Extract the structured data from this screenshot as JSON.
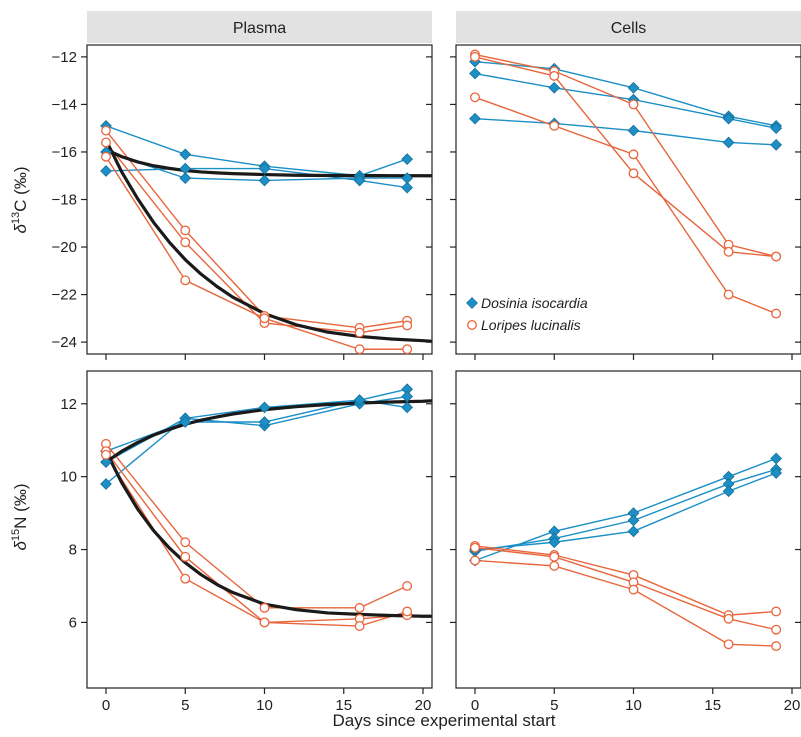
{
  "colors": {
    "dosinia": "#1b8fc6",
    "loripes": "#e8663d",
    "fit": "#1a1a1a",
    "strip": "#e2e2e2",
    "axis": "#222222"
  },
  "strips": [
    "Plasma",
    "Cells"
  ],
  "xlabel": "Days since experimental start",
  "ylabels": {
    "carbon": {
      "pre": "δ",
      "sup": "13",
      "post": "C (‰)"
    },
    "nitrogen": {
      "pre": "δ",
      "sup": "15",
      "post": "N (‰)"
    }
  },
  "legend": [
    {
      "name": "Dosinia isocardia",
      "marker": "diamond",
      "color": "#1b8fc6"
    },
    {
      "name": "Loripes lucinalis",
      "marker": "circle",
      "color": "#e8663d"
    }
  ],
  "chart_data": [
    {
      "type": "line",
      "panel": "Plasma",
      "variable": "d13C",
      "xlim": [
        0,
        20
      ],
      "ylim": [
        -24.5,
        -11.5
      ],
      "xticks": [
        0,
        5,
        10,
        15,
        20
      ],
      "yticks": [
        -24,
        -22,
        -20,
        -18,
        -16,
        -14,
        -12
      ],
      "series": [
        {
          "species": "Dosinia isocardia",
          "x": [
            0,
            5,
            10,
            16,
            19
          ],
          "y": [
            -14.9,
            -16.1,
            -16.6,
            -17.0,
            -16.3
          ]
        },
        {
          "species": "Dosinia isocardia",
          "x": [
            0,
            5,
            10,
            16,
            19
          ],
          "y": [
            -16.0,
            -17.1,
            -17.2,
            -17.1,
            -17.1
          ]
        },
        {
          "species": "Dosinia isocardia",
          "x": [
            0,
            5,
            10,
            16,
            19
          ],
          "y": [
            -16.8,
            -16.7,
            -16.7,
            -17.2,
            -17.5
          ]
        },
        {
          "species": "Loripes lucinalis",
          "x": [
            0,
            5,
            10,
            16,
            19
          ],
          "y": [
            -15.1,
            -19.3,
            -22.9,
            -23.4,
            -23.1
          ]
        },
        {
          "species": "Loripes lucinalis",
          "x": [
            0,
            5,
            10,
            16,
            19
          ],
          "y": [
            -15.6,
            -19.8,
            -23.2,
            -23.6,
            -23.3
          ]
        },
        {
          "species": "Loripes lucinalis",
          "x": [
            0,
            5,
            10,
            16,
            19
          ],
          "y": [
            -16.2,
            -21.4,
            -23.0,
            -24.3,
            -24.3
          ]
        }
      ],
      "fits": [
        {
          "x": [
            0,
            1,
            2,
            3,
            4,
            5,
            6,
            7,
            8,
            10,
            12,
            14,
            16,
            18,
            20,
            20.5
          ],
          "y": [
            -15.9,
            -16.2,
            -16.42,
            -16.58,
            -16.69,
            -16.78,
            -16.84,
            -16.88,
            -16.91,
            -16.95,
            -16.98,
            -16.99,
            -16.995,
            -16.998,
            -17.0,
            -17.0
          ]
        },
        {
          "x": [
            0,
            1,
            2,
            3,
            4,
            5,
            6,
            7,
            8,
            10,
            12,
            14,
            16,
            18,
            20,
            20.5
          ],
          "y": [
            -15.5,
            -16.85,
            -17.97,
            -18.96,
            -19.8,
            -20.53,
            -21.14,
            -21.66,
            -22.11,
            -22.8,
            -23.27,
            -23.58,
            -23.76,
            -23.87,
            -23.94,
            -23.96
          ]
        }
      ]
    },
    {
      "type": "line",
      "panel": "Cells",
      "variable": "d13C",
      "xlim": [
        0,
        20
      ],
      "ylim": [
        -24.5,
        -11.5
      ],
      "xticks": [
        0,
        5,
        10,
        15,
        20
      ],
      "yticks": [
        -24,
        -22,
        -20,
        -18,
        -16,
        -14,
        -12
      ],
      "series": [
        {
          "species": "Dosinia isocardia",
          "x": [
            0,
            5,
            10,
            16,
            19
          ],
          "y": [
            -12.2,
            -12.5,
            -13.3,
            -14.5,
            -14.9
          ]
        },
        {
          "species": "Dosinia isocardia",
          "x": [
            0,
            5,
            10,
            16,
            19
          ],
          "y": [
            -12.7,
            -13.3,
            -13.8,
            -14.6,
            -15.0
          ]
        },
        {
          "species": "Dosinia isocardia",
          "x": [
            0,
            5,
            10,
            16,
            19
          ],
          "y": [
            -14.6,
            -14.8,
            -15.1,
            -15.6,
            -15.7
          ]
        },
        {
          "species": "Loripes lucinalis",
          "x": [
            0,
            5,
            10,
            16,
            19
          ],
          "y": [
            -11.9,
            -12.6,
            -14.0,
            -19.9,
            -20.4
          ]
        },
        {
          "species": "Loripes lucinalis",
          "x": [
            0,
            5,
            10,
            16,
            19
          ],
          "y": [
            -12.0,
            -12.8,
            -16.9,
            -20.2,
            -20.4
          ]
        },
        {
          "species": "Loripes lucinalis",
          "x": [
            0,
            5,
            10,
            16,
            19
          ],
          "y": [
            -13.7,
            -14.9,
            -16.1,
            -22.0,
            -22.8
          ]
        }
      ]
    },
    {
      "type": "line",
      "panel": "Plasma",
      "variable": "d15N",
      "xlim": [
        0,
        20
      ],
      "ylim": [
        4.2,
        12.9
      ],
      "xticks": [
        0,
        5,
        10,
        15,
        20
      ],
      "yticks": [
        6,
        8,
        10,
        12
      ],
      "series": [
        {
          "species": "Dosinia isocardia",
          "x": [
            0,
            5,
            10,
            16,
            19
          ],
          "y": [
            9.8,
            11.6,
            11.9,
            12.1,
            12.4
          ]
        },
        {
          "species": "Dosinia isocardia",
          "x": [
            0,
            5,
            10,
            16,
            19
          ],
          "y": [
            10.4,
            11.6,
            11.4,
            12.0,
            12.2
          ]
        },
        {
          "species": "Dosinia isocardia",
          "x": [
            0,
            5,
            10,
            16,
            19
          ],
          "y": [
            10.7,
            11.5,
            11.5,
            12.1,
            11.9
          ]
        },
        {
          "species": "Loripes lucinalis",
          "x": [
            0,
            5,
            10,
            16,
            19
          ],
          "y": [
            10.9,
            8.2,
            6.4,
            6.4,
            7.0
          ]
        },
        {
          "species": "Loripes lucinalis",
          "x": [
            0,
            5,
            10,
            16,
            19
          ],
          "y": [
            10.7,
            7.8,
            6.0,
            6.1,
            6.2
          ]
        },
        {
          "species": "Loripes lucinalis",
          "x": [
            0,
            5,
            10,
            16,
            19
          ],
          "y": [
            10.6,
            7.2,
            6.0,
            5.9,
            6.3
          ]
        }
      ],
      "fits": [
        {
          "x": [
            0,
            1,
            2,
            3,
            4,
            5,
            6,
            7,
            8,
            10,
            12,
            14,
            16,
            18,
            20,
            20.5
          ],
          "y": [
            10.4,
            10.7,
            10.94,
            11.14,
            11.3,
            11.44,
            11.55,
            11.64,
            11.72,
            11.84,
            11.92,
            11.98,
            12.02,
            12.05,
            12.07,
            12.08
          ]
        },
        {
          "x": [
            0,
            1,
            2,
            3,
            4,
            5,
            6,
            7,
            8,
            10,
            12,
            14,
            16,
            18,
            20,
            20.5
          ],
          "y": [
            10.7,
            9.83,
            9.11,
            8.52,
            8.04,
            7.64,
            7.31,
            7.04,
            6.82,
            6.5,
            6.35,
            6.26,
            6.22,
            6.19,
            6.17,
            6.17
          ]
        }
      ]
    },
    {
      "type": "line",
      "panel": "Cells",
      "variable": "d15N",
      "xlim": [
        0,
        20
      ],
      "ylim": [
        4.2,
        12.9
      ],
      "xticks": [
        0,
        5,
        10,
        15,
        20
      ],
      "yticks": [
        6,
        8,
        10,
        12
      ],
      "series": [
        {
          "species": "Dosinia isocardia",
          "x": [
            0,
            5,
            10,
            16,
            19
          ],
          "y": [
            7.7,
            8.5,
            9.0,
            10.0,
            10.5
          ]
        },
        {
          "species": "Dosinia isocardia",
          "x": [
            0,
            5,
            10,
            16,
            19
          ],
          "y": [
            7.95,
            8.3,
            8.8,
            9.8,
            10.2
          ]
        },
        {
          "species": "Dosinia isocardia",
          "x": [
            0,
            5,
            10,
            16,
            19
          ],
          "y": [
            8.0,
            8.2,
            8.5,
            9.6,
            10.1
          ]
        },
        {
          "species": "Loripes lucinalis",
          "x": [
            0,
            5,
            10,
            16,
            19
          ],
          "y": [
            8.1,
            7.85,
            7.3,
            6.2,
            6.3
          ]
        },
        {
          "species": "Loripes lucinalis",
          "x": [
            0,
            5,
            10,
            16,
            19
          ],
          "y": [
            8.05,
            7.8,
            7.1,
            6.1,
            5.8
          ]
        },
        {
          "species": "Loripes lucinalis",
          "x": [
            0,
            5,
            10,
            16,
            19
          ],
          "y": [
            7.7,
            7.55,
            6.9,
            5.4,
            5.35
          ]
        }
      ]
    }
  ]
}
